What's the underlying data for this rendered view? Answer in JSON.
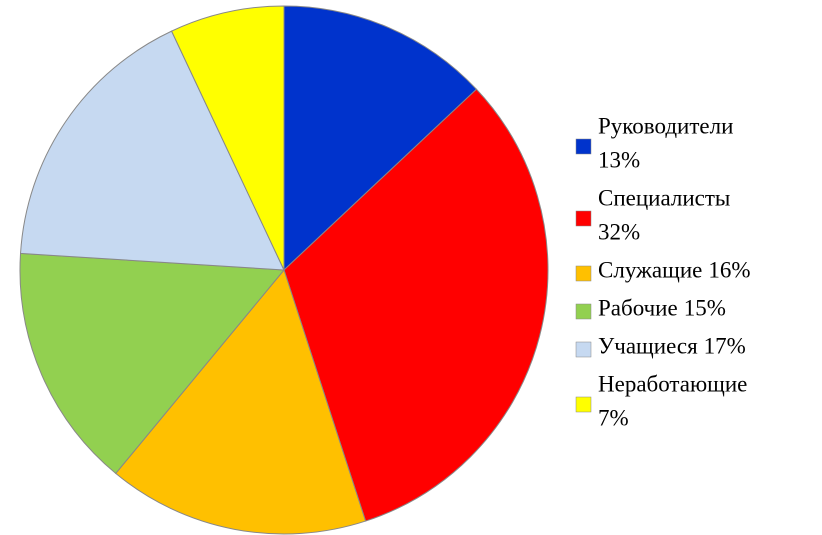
{
  "chart_data": {
    "type": "pie",
    "categories": [
      "Руководители",
      "Специалисты",
      "Служащие",
      "Рабочие",
      "Учащиеся",
      "Неработающие"
    ],
    "values": [
      13,
      32,
      16,
      15,
      17,
      7
    ],
    "value_labels": [
      "13%",
      "32%",
      "16%",
      "15%",
      "17%",
      "7%"
    ],
    "colors": [
      "#0033cc",
      "#ff0000",
      "#ffc000",
      "#92d050",
      "#c6d9f1",
      "#ffff00"
    ],
    "legend": "right"
  }
}
